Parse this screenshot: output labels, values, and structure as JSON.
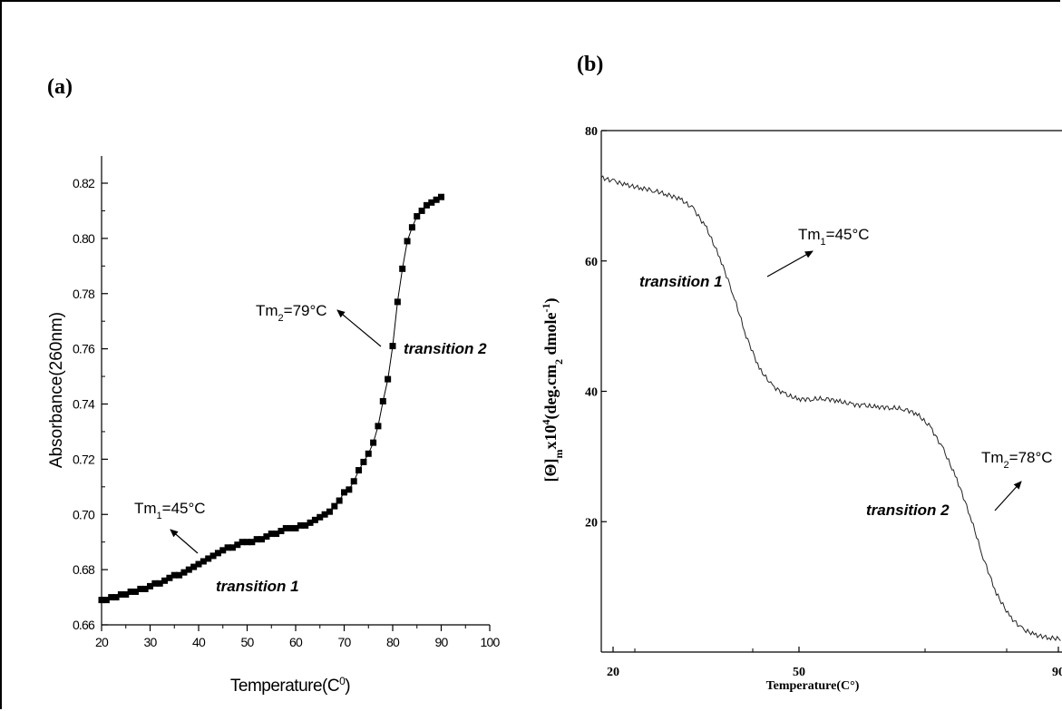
{
  "chart_data": [
    {
      "panel_label": "(a)",
      "type": "scatter",
      "xlabel": "Temperature(C",
      "xlabel_sup": "0",
      "xlabel_close": ")",
      "ylabel": "Absorbance(260nm)",
      "xlim": [
        20,
        100
      ],
      "ylim": [
        0.66,
        0.83
      ],
      "x_ticks": [
        "20",
        "30",
        "40",
        "50",
        "60",
        "70",
        "80",
        "90",
        "100"
      ],
      "y_ticks": [
        "0.66",
        "0.68",
        "0.70",
        "0.72",
        "0.74",
        "0.76",
        "0.78",
        "0.80",
        "0.82"
      ],
      "x": [
        20,
        21,
        22,
        23,
        24,
        25,
        26,
        27,
        28,
        29,
        30,
        31,
        32,
        33,
        34,
        35,
        36,
        37,
        38,
        39,
        40,
        41,
        42,
        43,
        44,
        45,
        46,
        47,
        48,
        49,
        50,
        51,
        52,
        53,
        54,
        55,
        56,
        57,
        58,
        59,
        60,
        61,
        62,
        63,
        64,
        65,
        66,
        67,
        68,
        69,
        70,
        71,
        72,
        73,
        74,
        75,
        76,
        77,
        78,
        79,
        80,
        81,
        82,
        83,
        84,
        85,
        86,
        87,
        88,
        89,
        90
      ],
      "y": [
        0.669,
        0.669,
        0.67,
        0.67,
        0.671,
        0.671,
        0.672,
        0.672,
        0.673,
        0.673,
        0.674,
        0.675,
        0.675,
        0.676,
        0.677,
        0.678,
        0.678,
        0.679,
        0.68,
        0.681,
        0.682,
        0.683,
        0.684,
        0.685,
        0.686,
        0.687,
        0.688,
        0.688,
        0.689,
        0.69,
        0.69,
        0.69,
        0.691,
        0.691,
        0.692,
        0.693,
        0.693,
        0.694,
        0.695,
        0.695,
        0.695,
        0.696,
        0.696,
        0.697,
        0.698,
        0.699,
        0.7,
        0.701,
        0.703,
        0.705,
        0.708,
        0.709,
        0.712,
        0.716,
        0.719,
        0.722,
        0.726,
        0.732,
        0.741,
        0.749,
        0.761,
        0.777,
        0.789,
        0.799,
        0.804,
        0.808,
        0.81,
        0.812,
        0.813,
        0.814,
        0.815
      ],
      "annotations": [
        {
          "prefix": "Tm",
          "sub": "1",
          "suffix": "=45°C"
        },
        {
          "prefix": "Tm",
          "sub": "2",
          "suffix": "=79°C"
        },
        {
          "text": "transition 1"
        },
        {
          "text": "transition 2"
        }
      ]
    },
    {
      "panel_label": "(b)",
      "type": "line",
      "xlabel": "Temperature(C°)",
      "ylabel_parts": [
        "[Θ]",
        "m",
        "x10",
        "4",
        "(deg.cm",
        "2",
        " dmole",
        "-1",
        ")"
      ],
      "xlim": [
        18,
        95
      ],
      "ylim": [
        0,
        80
      ],
      "x_ticks": [
        "20",
        "50",
        "90"
      ],
      "y_ticks": [
        "80",
        "60",
        "40",
        "20"
      ],
      "x": [
        18,
        20,
        22,
        24,
        26,
        28,
        30,
        32,
        34,
        36,
        38,
        40,
        42,
        44,
        46,
        48,
        50,
        52,
        54,
        56,
        58,
        60,
        62,
        64,
        66,
        68,
        70,
        72,
        74,
        76,
        78,
        80,
        82,
        84,
        86,
        88,
        90,
        92,
        94,
        95
      ],
      "y": [
        72.8,
        72.2,
        71.6,
        71.2,
        70.8,
        70.2,
        69.5,
        68.0,
        65.0,
        60.5,
        55.0,
        48.5,
        43.5,
        40.8,
        39.5,
        38.8,
        38.8,
        38.9,
        38.5,
        38.0,
        37.8,
        37.6,
        37.5,
        37.3,
        36.5,
        34.5,
        31.0,
        26.5,
        21.0,
        14.5,
        9.0,
        5.5,
        3.5,
        2.6,
        2.2,
        2.0,
        2.0,
        2.0,
        2.0,
        2.0
      ],
      "annotations": [
        {
          "prefix": "Tm",
          "sub": "1",
          "suffix": "=45°C"
        },
        {
          "prefix": "Tm",
          "sub": "2",
          "suffix": "=78°C"
        },
        {
          "text": "transition 1"
        },
        {
          "text": "transition 2"
        }
      ]
    }
  ]
}
